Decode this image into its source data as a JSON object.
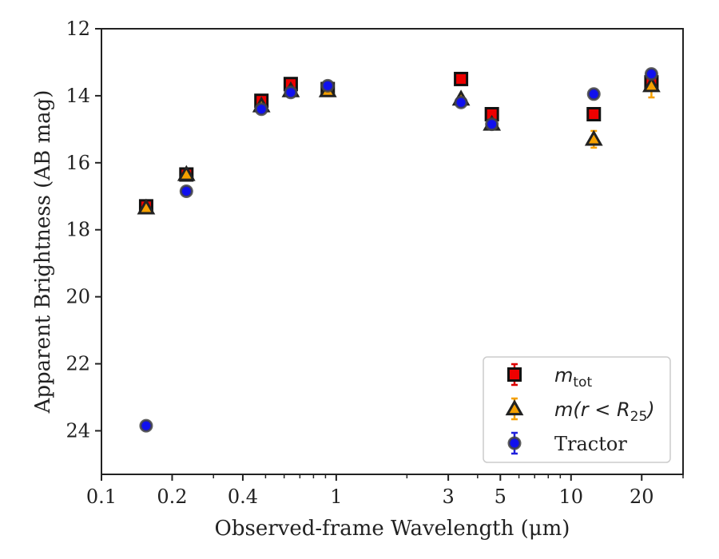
{
  "chart_data": {
    "type": "scatter",
    "xscale": "log",
    "xlim": [
      0.1,
      30
    ],
    "ylim": [
      25.3,
      12
    ],
    "y_inverted": true,
    "xlabel": "Observed-frame Wavelength (μm)",
    "ylabel": "Apparent Brightness (AB mag)",
    "xticks": [
      {
        "value": 0.1,
        "label": "0.1"
      },
      {
        "value": 0.2,
        "label": "0.2"
      },
      {
        "value": 0.4,
        "label": "0.4"
      },
      {
        "value": 1,
        "label": "1"
      },
      {
        "value": 3,
        "label": "3"
      },
      {
        "value": 5,
        "label": "5"
      },
      {
        "value": 10,
        "label": "10"
      },
      {
        "value": 20,
        "label": "20"
      }
    ],
    "yticks": [
      {
        "value": 12,
        "label": "12"
      },
      {
        "value": 14,
        "label": "14"
      },
      {
        "value": 16,
        "label": "16"
      },
      {
        "value": 18,
        "label": "18"
      },
      {
        "value": 20,
        "label": "20"
      },
      {
        "value": 22,
        "label": "22"
      },
      {
        "value": 24,
        "label": "24"
      }
    ],
    "legend_position": "lower-right",
    "series": [
      {
        "name": "m_tot",
        "legend_main": "m",
        "legend_sub": "tot",
        "marker": "square",
        "face_color": "#ee0000",
        "edge_color": "#111111",
        "errorbar_color": "#dd0000",
        "points": [
          {
            "x": 0.155,
            "y": 17.3,
            "err": 0.08
          },
          {
            "x": 0.23,
            "y": 16.35,
            "err": 0.08
          },
          {
            "x": 0.48,
            "y": 14.15,
            "err": 0.08
          },
          {
            "x": 0.64,
            "y": 13.65,
            "err": 0.08
          },
          {
            "x": 0.92,
            "y": 13.8,
            "err": 0.08
          },
          {
            "x": 3.4,
            "y": 13.5,
            "err": 0.05
          },
          {
            "x": 4.6,
            "y": 14.55,
            "err": 0.05
          },
          {
            "x": 12.5,
            "y": 14.55,
            "err": 0.05
          },
          {
            "x": 22.0,
            "y": 13.6,
            "err": 0.08
          }
        ]
      },
      {
        "name": "m(r < R25)",
        "legend_main": "m(r < R",
        "legend_sub": "25",
        "legend_close": ")",
        "marker": "triangle",
        "face_color": "#f5a000",
        "edge_color": "#222222",
        "errorbar_color": "#f5a000",
        "points": [
          {
            "x": 0.155,
            "y": 17.35,
            "err": 0.05
          },
          {
            "x": 0.23,
            "y": 16.35,
            "err": 0.05
          },
          {
            "x": 0.48,
            "y": 14.3,
            "err": 0.05
          },
          {
            "x": 0.64,
            "y": 13.85,
            "err": 0.05
          },
          {
            "x": 0.92,
            "y": 13.85,
            "err": 0.05
          },
          {
            "x": 3.4,
            "y": 14.1,
            "err": 0.05
          },
          {
            "x": 4.6,
            "y": 14.85,
            "err": 0.05
          },
          {
            "x": 12.5,
            "y": 15.3,
            "err": 0.25
          },
          {
            "x": 22.0,
            "y": 13.7,
            "err": 0.35
          }
        ]
      },
      {
        "name": "Tractor",
        "legend_main": "Tractor",
        "marker": "circle",
        "face_color": "#1010ee",
        "edge_color": "#444444",
        "errorbar_color": "#2020dd",
        "points": [
          {
            "x": 0.155,
            "y": 23.85,
            "err": 0.05
          },
          {
            "x": 0.23,
            "y": 16.85,
            "err": 0.05
          },
          {
            "x": 0.48,
            "y": 14.4,
            "err": 0.05
          },
          {
            "x": 0.64,
            "y": 13.9,
            "err": 0.05
          },
          {
            "x": 0.92,
            "y": 13.7,
            "err": 0.05
          },
          {
            "x": 3.4,
            "y": 14.2,
            "err": 0.05
          },
          {
            "x": 4.6,
            "y": 14.85,
            "err": 0.05
          },
          {
            "x": 12.5,
            "y": 13.95,
            "err": 0.05
          },
          {
            "x": 22.0,
            "y": 13.35,
            "err": 0.05
          }
        ]
      }
    ]
  }
}
